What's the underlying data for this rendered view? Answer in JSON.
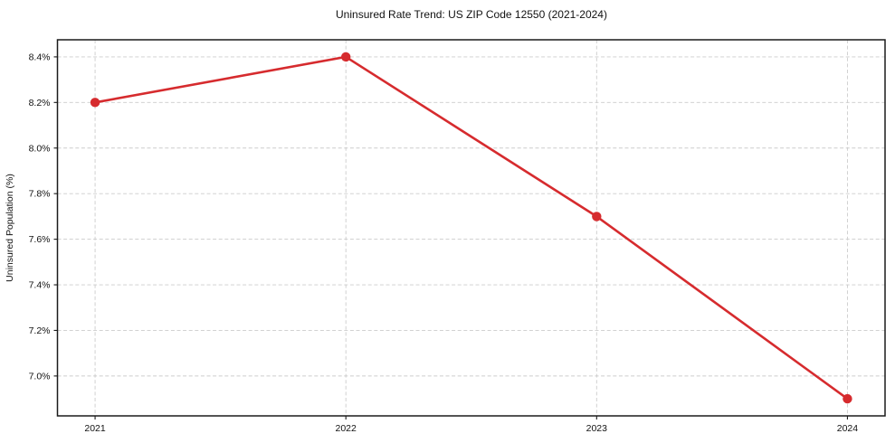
{
  "chart_data": {
    "type": "line",
    "title": "Uninsured Rate Trend: US ZIP Code 12550 (2021-2024)",
    "xlabel": "",
    "ylabel": "Uninsured Population (%)",
    "x": [
      2021,
      2022,
      2023,
      2024
    ],
    "x_ticks": [
      "2021",
      "2022",
      "2023",
      "2024"
    ],
    "values": [
      8.2,
      8.4,
      7.7,
      6.9
    ],
    "y_ticks": [
      "7.0%",
      "7.2%",
      "7.4%",
      "7.6%",
      "7.8%",
      "8.0%",
      "8.2%",
      "8.4%"
    ],
    "y_tick_values": [
      7.0,
      7.2,
      7.4,
      7.6,
      7.8,
      8.0,
      8.2,
      8.4
    ],
    "xlim": [
      2020.85,
      2024.15
    ],
    "ylim": [
      6.825,
      8.475
    ],
    "grid": true,
    "grid_style": "dashed",
    "legend": "none",
    "line_color": "#d62b2e",
    "marker": "circle",
    "grid_color": "#cccccc",
    "axis_color": "#1a1a1a",
    "text_color": "#111111",
    "background_color": "#ffffff"
  }
}
